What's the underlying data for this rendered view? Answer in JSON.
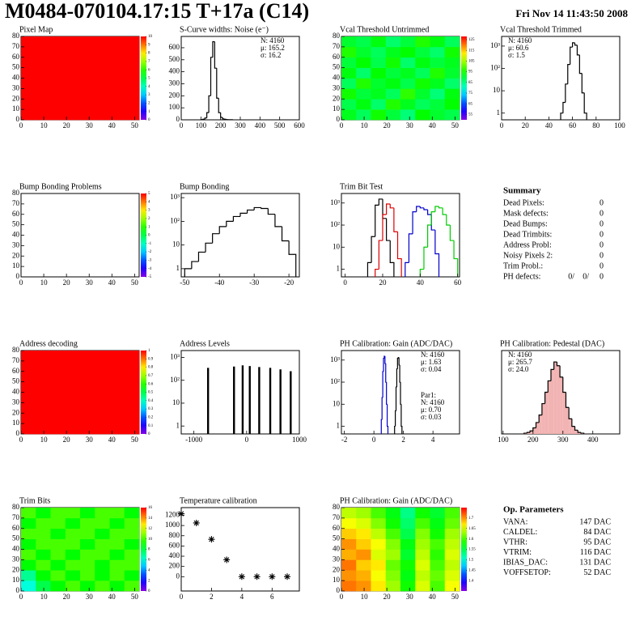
{
  "header": {
    "title": "M0484-070104.17:15 T+17a (C14)",
    "date": "Fri Nov 14 11:43:50 2008"
  },
  "chart_data": [
    {
      "type": "heatmap",
      "title": "Pixel Map",
      "xlim": [
        0,
        52
      ],
      "ylim": [
        0,
        80
      ],
      "xticks": [
        0,
        10,
        20,
        30,
        40,
        50
      ],
      "yticks": [
        0,
        10,
        20,
        30,
        40,
        50,
        60,
        70,
        80
      ],
      "z": [
        [
          10
        ]
      ],
      "zlim": [
        0,
        10
      ],
      "zticks": [
        0,
        1,
        2,
        3,
        4,
        5,
        6,
        7,
        8,
        9,
        10
      ]
    },
    {
      "type": "histogram",
      "title": "S-Curve widths: Noise (e⁻)",
      "xlim": [
        0,
        600
      ],
      "ylim": [
        0,
        694
      ],
      "xticks": [
        0,
        100,
        200,
        300,
        400,
        500,
        600
      ],
      "yticks": [
        0,
        100,
        200,
        300,
        400,
        500,
        600
      ],
      "bins": [
        100,
        110,
        120,
        130,
        140,
        150,
        160,
        170,
        180,
        190,
        200,
        210,
        220,
        230,
        240,
        250,
        260
      ],
      "counts": [
        2,
        5,
        15,
        60,
        200,
        520,
        650,
        430,
        180,
        60,
        20,
        8,
        4,
        2,
        1,
        1
      ],
      "color": "#000000",
      "stats": [
        "N: 4160",
        "μ: 165.2",
        "σ: 16.2"
      ],
      "stats_corner": "upper right"
    },
    {
      "type": "heatmap",
      "title": "Vcal Threshold Untrimmed",
      "xlim": [
        0,
        52
      ],
      "ylim": [
        0,
        80
      ],
      "xticks": [
        0,
        10,
        20,
        30,
        40,
        50
      ],
      "yticks": [
        0,
        10,
        20,
        30,
        40,
        50,
        60,
        70,
        80
      ],
      "zlim": [
        50,
        128
      ],
      "zticks": [
        55,
        65,
        75,
        85,
        95,
        105,
        115,
        125
      ],
      "z": [
        [
          92,
          88,
          95,
          90,
          86,
          94,
          91,
          89
        ],
        [
          89,
          93,
          87,
          96,
          92,
          88,
          90,
          94
        ],
        [
          95,
          90,
          92,
          88,
          97,
          91,
          86,
          93
        ],
        [
          88,
          96,
          91,
          93,
          89,
          95,
          92,
          87
        ],
        [
          93,
          87,
          94,
          90,
          92,
          88,
          96,
          91
        ],
        [
          90,
          94,
          89,
          95,
          87,
          93,
          90,
          92
        ],
        [
          96,
          91,
          88,
          92,
          94,
          90,
          87,
          95
        ],
        [
          91,
          89,
          93,
          87,
          90,
          96,
          93,
          88
        ]
      ]
    },
    {
      "type": "histogram",
      "title": "Vcal Threshold Trimmed",
      "log": true,
      "xlim": [
        0,
        100
      ],
      "ylim": [
        0.5,
        2700
      ],
      "xticks": [
        0,
        20,
        40,
        60,
        80,
        100
      ],
      "yticks": [
        1,
        10,
        {
          "value": 100,
          "label": "10²"
        },
        {
          "value": 1000,
          "label": "10³"
        }
      ],
      "bins": [
        50,
        52,
        54,
        56,
        58,
        60,
        62,
        64,
        66,
        68,
        70,
        72
      ],
      "counts": [
        1,
        3,
        20,
        150,
        900,
        1400,
        1100,
        400,
        60,
        8,
        1
      ],
      "color": "#000000",
      "stats": [
        "N: 4160",
        "μ: 60.6",
        "σ: 1.5"
      ],
      "stats_corner": "upper left"
    },
    {
      "type": "heatmap",
      "title": "Bump Bonding Problems",
      "xlim": [
        0,
        52
      ],
      "ylim": [
        0,
        80
      ],
      "xticks": [
        0,
        10,
        20,
        30,
        40,
        50
      ],
      "yticks": [
        0,
        10,
        20,
        30,
        40,
        50,
        60,
        70,
        80
      ],
      "z": [],
      "zlim": [
        -5,
        5
      ],
      "zticks": [
        -5,
        -4,
        -3,
        -2,
        -1,
        0,
        1,
        2,
        3,
        4,
        5
      ]
    },
    {
      "type": "histogram",
      "title": "Bump Bonding",
      "log": true,
      "xlim": [
        -51,
        -17
      ],
      "ylim": [
        0.45,
        1500
      ],
      "xticks": [
        -50,
        -40,
        -30,
        -20
      ],
      "yticks": [
        1,
        10,
        {
          "value": 100,
          "label": "10²"
        },
        {
          "value": 1000,
          "label": "10³"
        }
      ],
      "bins": [
        -50,
        -48,
        -46,
        -44,
        -42,
        -40,
        -38,
        -36,
        -34,
        -32,
        -30,
        -28,
        -26,
        -24,
        -22,
        -20,
        -18
      ],
      "counts": [
        1,
        2,
        5,
        12,
        30,
        60,
        100,
        160,
        220,
        300,
        380,
        350,
        200,
        60,
        15,
        4
      ],
      "color": "#000000"
    },
    {
      "type": "histogram",
      "title": "Trim Bit Test",
      "log": true,
      "xlim": [
        -2,
        61
      ],
      "ylim": [
        0.45,
        2700
      ],
      "xticks": [
        0,
        20,
        40,
        60
      ],
      "yticks": [
        1,
        10,
        {
          "value": 100,
          "label": "10²"
        },
        {
          "value": 1000,
          "label": "10³"
        }
      ],
      "series": [
        {
          "color": "#000000",
          "bins": [
            12,
            14,
            16,
            18,
            20,
            22,
            24,
            26
          ],
          "counts": [
            2,
            30,
            800,
            1500,
            200,
            20,
            2
          ]
        },
        {
          "color": "#dd0000",
          "bins": [
            16,
            18,
            20,
            22,
            24,
            26,
            28,
            30
          ],
          "counts": [
            1,
            20,
            300,
            900,
            600,
            50,
            3
          ]
        },
        {
          "color": "#0000cc",
          "bins": [
            32,
            34,
            36,
            38,
            40,
            42,
            44,
            46,
            48,
            50
          ],
          "counts": [
            2,
            40,
            400,
            700,
            600,
            500,
            300,
            60,
            5
          ]
        },
        {
          "color": "#00cc00",
          "bins": [
            40,
            42,
            44,
            46,
            48,
            50,
            52,
            54,
            56,
            58,
            60
          ],
          "counts": [
            1,
            10,
            100,
            400,
            700,
            600,
            300,
            100,
            20,
            3
          ]
        }
      ]
    },
    {
      "type": "heatmap",
      "title": "Address decoding",
      "xlim": [
        0,
        52
      ],
      "ylim": [
        0,
        80
      ],
      "xticks": [
        0,
        10,
        20,
        30,
        40,
        50
      ],
      "yticks": [
        0,
        10,
        20,
        30,
        40,
        50,
        60,
        70,
        80
      ],
      "z": [
        [
          1
        ]
      ],
      "zlim": [
        0,
        1
      ],
      "zticks": [
        0,
        0.1,
        0.2,
        0.3,
        0.4,
        0.5,
        0.6,
        0.7,
        0.8,
        0.9,
        1
      ]
    },
    {
      "type": "spikes",
      "title": "Address Levels",
      "log": true,
      "xlim": [
        -1240,
        1000
      ],
      "ylim": [
        0.45,
        2000
      ],
      "xticks": [
        -1000,
        0,
        1000
      ],
      "yticks": [
        1,
        10,
        {
          "value": 100,
          "label": "10²"
        },
        {
          "value": 1000,
          "label": "10³"
        }
      ],
      "x": [
        -731,
        -239,
        -75,
        60,
        239,
        448,
        642,
        836
      ],
      "values": [
        350,
        400,
        450,
        420,
        380,
        350,
        300,
        250
      ],
      "color": "#000000"
    },
    {
      "type": "histogram",
      "title": "PH Calibration: Gain (ADC/DAC)",
      "log": true,
      "xlim": [
        -2.2,
        5.8
      ],
      "ylim": [
        0.45,
        2700
      ],
      "xticks": [
        -2,
        0,
        2,
        4
      ],
      "yticks": [
        1,
        10,
        {
          "value": 100,
          "label": "10²"
        },
        {
          "value": 1000,
          "label": "10³"
        }
      ],
      "series": [
        {
          "color": "#000000",
          "bins": [
            1.4,
            1.45,
            1.5,
            1.55,
            1.6,
            1.65,
            1.7,
            1.75,
            1.8,
            1.85,
            1.9
          ],
          "counts": [
            1,
            5,
            60,
            400,
            1200,
            1300,
            600,
            100,
            10,
            1
          ]
        },
        {
          "color": "#0000cc",
          "bins": [
            0.5,
            0.55,
            0.6,
            0.65,
            0.7,
            0.75,
            0.8,
            0.85,
            0.9,
            0.95
          ],
          "counts": [
            2,
            20,
            300,
            1200,
            1500,
            700,
            100,
            10,
            1
          ]
        }
      ],
      "stats": [
        "N: 4160",
        "μ: 1.63",
        "σ: 0.04"
      ],
      "stats_corner": "upper right",
      "stats2": [
        "Par1:",
        "N: 4160",
        "μ: 0.70",
        "σ: 0.03"
      ],
      "stats2_color": "#0000cc"
    },
    {
      "type": "histogram",
      "title": "PH Calibration: Pedestal (DAC)",
      "xlim": [
        95,
        490
      ],
      "ylim": [
        0,
        110
      ],
      "xticks": [
        100,
        200,
        300,
        400
      ],
      "yticks": [],
      "bins": [
        170,
        180,
        190,
        200,
        210,
        220,
        230,
        240,
        250,
        260,
        270,
        280,
        290,
        300,
        310,
        320,
        330,
        340,
        350,
        360,
        370
      ],
      "counts": [
        1,
        2,
        4,
        8,
        15,
        25,
        40,
        55,
        70,
        85,
        95,
        90,
        75,
        55,
        35,
        20,
        10,
        5,
        2,
        1
      ],
      "color": "#000000",
      "fill": "#f2b3b3",
      "stats": [
        "N: 4160",
        "μ: 265.7",
        "σ: 24.0"
      ],
      "stats_colors": [
        "#000000",
        "#dd0000",
        "#dd0000"
      ],
      "stats_corner": "upper left"
    },
    {
      "type": "heatmap",
      "title": "Trim Bits",
      "xlim": [
        0,
        52
      ],
      "ylim": [
        0,
        80
      ],
      "xticks": [
        0,
        10,
        20,
        30,
        40,
        50
      ],
      "yticks": [
        0,
        10,
        20,
        30,
        40,
        50,
        60,
        70,
        80
      ],
      "zlim": [
        0,
        16
      ],
      "zticks": [
        0,
        2,
        4,
        6,
        8,
        10,
        12,
        14,
        16
      ],
      "z": [
        [
          6,
          8,
          9,
          10,
          9,
          10,
          9,
          10
        ],
        [
          7,
          9,
          10,
          9,
          10,
          9,
          10,
          9
        ],
        [
          9,
          10,
          9,
          10,
          10,
          9,
          10,
          10
        ],
        [
          10,
          9,
          10,
          9,
          10,
          10,
          9,
          10
        ],
        [
          9,
          10,
          10,
          10,
          9,
          10,
          10,
          9
        ],
        [
          10,
          10,
          9,
          10,
          10,
          9,
          10,
          10
        ],
        [
          9,
          10,
          10,
          9,
          10,
          10,
          9,
          10
        ],
        [
          10,
          9,
          10,
          10,
          9,
          10,
          10,
          9
        ]
      ]
    },
    {
      "type": "scatter",
      "title": "Temperature calibration",
      "xlim": [
        0,
        7.8
      ],
      "ylim": [
        -280,
        1350
      ],
      "xticks": [
        0,
        2,
        4,
        6
      ],
      "yticks": [
        0,
        200,
        400,
        600,
        800,
        1000,
        1200
      ],
      "x": [
        0,
        1,
        2,
        3,
        4,
        5,
        6,
        7
      ],
      "values": [
        1230,
        1050,
        730,
        330,
        0,
        0,
        0,
        0
      ],
      "color": "#000000"
    },
    {
      "type": "heatmap",
      "title": "PH Calibration: Gain (ADC/DAC)",
      "xlim": [
        0,
        52
      ],
      "ylim": [
        0,
        80
      ],
      "xticks": [
        0,
        10,
        20,
        30,
        40,
        50
      ],
      "yticks": [
        0,
        10,
        20,
        30,
        40,
        50,
        60,
        70,
        80
      ],
      "zlim": [
        1.35,
        1.75
      ],
      "zticks": [
        1.4,
        1.45,
        1.5,
        1.55,
        1.6,
        1.65,
        1.7
      ],
      "z": [
        [
          1.71,
          1.7,
          1.67,
          1.63,
          1.58,
          1.65,
          1.6,
          1.66
        ],
        [
          1.7,
          1.69,
          1.66,
          1.62,
          1.57,
          1.64,
          1.61,
          1.65
        ],
        [
          1.71,
          1.68,
          1.67,
          1.61,
          1.58,
          1.65,
          1.6,
          1.64
        ],
        [
          1.69,
          1.7,
          1.65,
          1.63,
          1.56,
          1.64,
          1.59,
          1.65
        ],
        [
          1.7,
          1.68,
          1.66,
          1.62,
          1.57,
          1.63,
          1.6,
          1.64
        ],
        [
          1.68,
          1.67,
          1.64,
          1.6,
          1.55,
          1.62,
          1.58,
          1.63
        ],
        [
          1.66,
          1.65,
          1.62,
          1.58,
          1.54,
          1.6,
          1.57,
          1.61
        ],
        [
          1.64,
          1.63,
          1.6,
          1.57,
          1.53,
          1.58,
          1.56,
          1.6
        ]
      ]
    }
  ],
  "summary": {
    "title": "Summary",
    "rows": [
      [
        "Dead Pixels:",
        "0"
      ],
      [
        "Mask defects:",
        "0"
      ],
      [
        "Dead Bumps:",
        "0"
      ],
      [
        "Dead Trimbits:",
        "0"
      ],
      [
        "Address Probl:",
        "0"
      ],
      [
        "Noisy Pixels 2:",
        "0"
      ],
      [
        "Trim Probl.:",
        "0"
      ]
    ],
    "ph_defects": {
      "label": "PH defects:",
      "parts": [
        "0/",
        "0/",
        "0"
      ],
      "colors": [
        "#000000",
        "#dd0000",
        "#0000cc"
      ]
    }
  },
  "op_parameters": {
    "title": "Op. Parameters",
    "rows": [
      [
        "VANA:",
        "147 DAC"
      ],
      [
        "CALDEL:",
        "84 DAC"
      ],
      [
        "VTHR:",
        "95 DAC"
      ],
      [
        "VTRIM:",
        "116 DAC"
      ],
      [
        "IBIAS_DAC:",
        "131 DAC"
      ],
      [
        "VOFFSETOP:",
        "52 DAC"
      ]
    ]
  }
}
